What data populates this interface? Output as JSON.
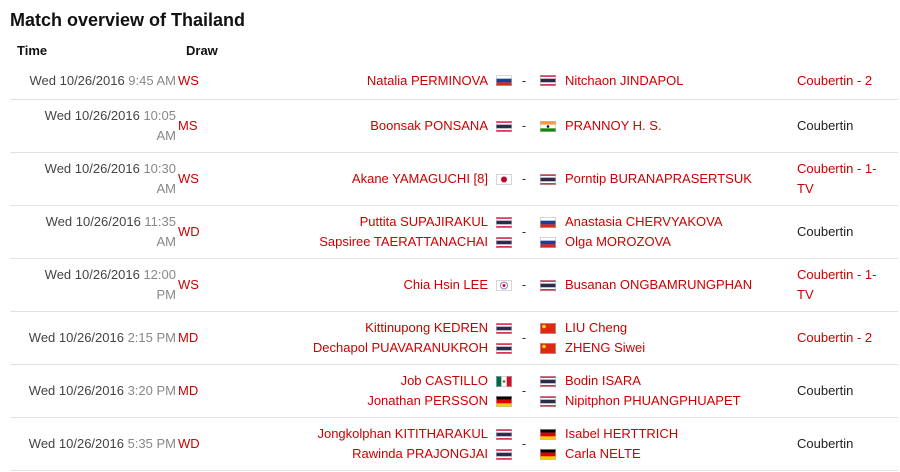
{
  "title": "Match overview of Thailand",
  "header": {
    "time": "Time",
    "draw": "Draw"
  },
  "rows": [
    {
      "date": "Wed 10/26/2016",
      "time": "9:45 AM",
      "draw": "WS",
      "left": [
        "Natalia PERMINOVA"
      ],
      "separator": "-",
      "right": [
        "Nitchaon JINDAPOL"
      ],
      "court": "Coubertin - 2",
      "court_color": "#cc0000"
    },
    {
      "date": "Wed 10/26/2016",
      "time": "10:05 AM",
      "draw": "MS",
      "left": [
        "Boonsak PONSANA"
      ],
      "separator": "-",
      "right": [
        "PRANNOY H. S."
      ],
      "court": "Coubertin",
      "court_color": "#222222"
    },
    {
      "date": "Wed 10/26/2016",
      "time": "10:30 AM",
      "draw": "WS",
      "left": [
        "Akane YAMAGUCHI [8]"
      ],
      "separator": "-",
      "right": [
        "Porntip BURANAPRASERTSUK"
      ],
      "court": "Coubertin - 1-TV",
      "court_color": "#cc0000"
    },
    {
      "date": "Wed 10/26/2016",
      "time": "11:35 AM",
      "draw": "WD",
      "left": [
        "Puttita SUPAJIRAKUL",
        "Sapsiree TAERATTANACHAI"
      ],
      "separator": "-",
      "right": [
        "Anastasia CHERVYAKOVA",
        "Olga MOROZOVA"
      ],
      "court": "Coubertin",
      "court_color": "#222222"
    },
    {
      "date": "Wed 10/26/2016",
      "time": "12:00 PM",
      "draw": "WS",
      "left": [
        "Chia Hsin LEE"
      ],
      "separator": "-",
      "right": [
        "Busanan ONGBAMRUNGPHAN"
      ],
      "court": "Coubertin - 1-TV",
      "court_color": "#cc0000"
    },
    {
      "date": "Wed 10/26/2016",
      "time": "2:15 PM",
      "draw": "MD",
      "left": [
        "Kittinupong KEDREN",
        "Dechapol PUAVARANUKROH"
      ],
      "separator": "-",
      "right": [
        "LIU Cheng",
        "ZHENG Siwei"
      ],
      "court": "Coubertin - 2",
      "court_color": "#cc0000"
    },
    {
      "date": "Wed 10/26/2016",
      "time": "3:20 PM",
      "draw": "MD",
      "left": [
        "Job CASTILLO",
        "Jonathan PERSSON"
      ],
      "separator": "-",
      "right": [
        "Bodin ISARA",
        "Nipitphon PHUANGPHUAPET"
      ],
      "court": "Coubertin",
      "court_color": "#222222"
    },
    {
      "date": "Wed 10/26/2016",
      "time": "5:35 PM",
      "draw": "WD",
      "left": [
        "Jongkolphan KITITHARAKUL",
        "Rawinda PRAJONGJAI"
      ],
      "separator": "-",
      "right": [
        "Isabel HERTTRICH",
        "Carla NELTE"
      ],
      "court": "Coubertin",
      "court_color": "#222222"
    }
  ]
}
